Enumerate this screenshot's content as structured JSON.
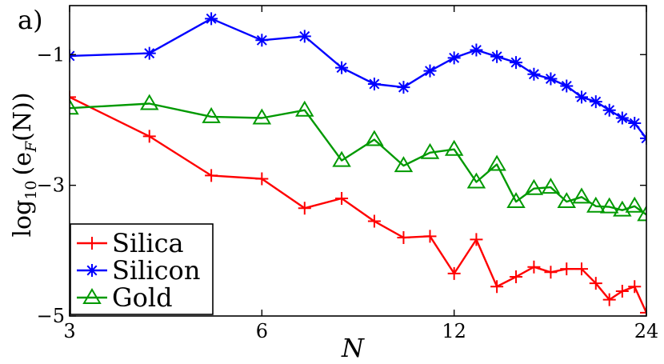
{
  "chart_data": {
    "type": "line",
    "panel_label": "a)",
    "xlabel": "N",
    "ylabel_prefix": "log",
    "ylabel_subscript": "10",
    "ylabel_body": "(e",
    "ylabel_body_subscript": "F",
    "ylabel_suffix": "(N))",
    "x_scale": "log",
    "xlim": [
      3,
      24
    ],
    "ylim": [
      -5,
      -0.25
    ],
    "x_ticks": [
      3,
      6,
      12,
      24
    ],
    "x_tick_labels": [
      "3",
      "6",
      "12",
      "24"
    ],
    "y_ticks": [
      -5,
      -3,
      -1
    ],
    "y_tick_labels": [
      "−5",
      "−3",
      "−1"
    ],
    "grid": false,
    "legend_position": "bottom-left",
    "x": [
      3,
      4,
      5,
      6,
      7,
      8,
      9,
      10,
      11,
      12,
      13,
      14,
      15,
      16,
      17,
      18,
      19,
      20,
      21,
      22,
      23,
      24
    ],
    "series": [
      {
        "name": "Silica",
        "color": "#ff0000",
        "marker": "plus",
        "values": [
          -1.65,
          -2.25,
          -2.85,
          -2.9,
          -3.35,
          -3.2,
          -3.55,
          -3.8,
          -3.78,
          -4.35,
          -3.83,
          -4.55,
          -4.4,
          -4.25,
          -4.33,
          -4.28,
          -4.28,
          -4.5,
          -4.75,
          -4.62,
          -4.55,
          -4.95
        ]
      },
      {
        "name": "Silicon",
        "color": "#0000ff",
        "marker": "asterisk",
        "values": [
          -1.02,
          -0.98,
          -0.45,
          -0.78,
          -0.72,
          -1.2,
          -1.45,
          -1.5,
          -1.25,
          -1.05,
          -0.93,
          -1.03,
          -1.12,
          -1.3,
          -1.37,
          -1.48,
          -1.65,
          -1.72,
          -1.85,
          -1.97,
          -2.05,
          -2.28
        ]
      },
      {
        "name": "Gold",
        "color": "#009900",
        "marker": "triangle",
        "values": [
          -1.82,
          -1.75,
          -1.95,
          -1.97,
          -1.85,
          -2.62,
          -2.3,
          -2.7,
          -2.5,
          -2.45,
          -2.95,
          -2.68,
          -3.25,
          -3.05,
          -3.03,
          -3.25,
          -3.18,
          -3.32,
          -3.33,
          -3.38,
          -3.32,
          -3.45
        ]
      }
    ]
  }
}
